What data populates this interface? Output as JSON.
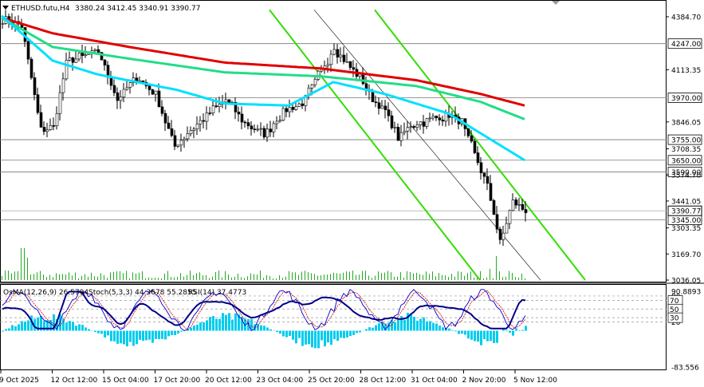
{
  "header": {
    "symbol": "ETHUSD.futu,H4",
    "ohlc": "3380.24 3412.45 3340.91 3390.77"
  },
  "indicator_header": {
    "osma": "OsMA(12,26,9) 26.5794",
    "stoch": "Stoch(5,3,3) 44.3678 55.2855",
    "rsi": "RSI(14) 37.4773"
  },
  "price_axis": {
    "ticks": [
      "4384.70",
      "4113.35",
      "3846.05",
      "3708.35",
      "3574.70",
      "3441.05",
      "3303.35",
      "3169.70",
      "3036.05"
    ],
    "levels": [
      {
        "value": "4247.00",
        "price": 4247
      },
      {
        "value": "3970.00",
        "price": 3970
      },
      {
        "value": "3755.00",
        "price": 3755
      },
      {
        "value": "3650.00",
        "price": 3650
      },
      {
        "value": "3590.00",
        "price": 3590
      },
      {
        "value": "3345.00",
        "price": 3345
      }
    ],
    "current": "3390.77"
  },
  "indicator_axis": {
    "ticks": [
      "90.8893",
      "80",
      "70",
      "50",
      "30",
      "20",
      "-83.556"
    ],
    "boxes": [
      "70",
      "50",
      "30"
    ]
  },
  "time_axis": [
    "9 Oct 2025",
    "12 Oct 12:00",
    "15 Oct 04:00",
    "17 Oct 20:00",
    "20 Oct 12:00",
    "23 Oct 04:00",
    "25 Oct 20:00",
    "28 Oct 12:00",
    "31 Oct 04:00",
    "2 Nov 20:00",
    "5 Nov 12:00"
  ],
  "colors": {
    "candle": "#000000",
    "ma_slow": "#e00000",
    "ma_mid": "#22dd88",
    "ma_fast": "#00e0ff",
    "channel": "#33dd00",
    "volume": "#22aa22",
    "osma": "#00ccee",
    "stoch_main": "#0000cc",
    "stoch_signal": "#cc0000",
    "rsi": "#000088"
  },
  "chart_data": {
    "type": "candlestick",
    "title": "ETHUSD.futu,H4",
    "ylim": [
      3036.05,
      4420
    ],
    "x_range": [
      "9 Oct 2025",
      "6 Nov 2025"
    ],
    "close_anchors": [
      {
        "bar": 0,
        "close": 4380
      },
      {
        "bar": 6,
        "close": 4340
      },
      {
        "bar": 12,
        "close": 3800
      },
      {
        "bar": 16,
        "close": 3820
      },
      {
        "bar": 20,
        "close": 4150
      },
      {
        "bar": 30,
        "close": 4210
      },
      {
        "bar": 36,
        "close": 3960
      },
      {
        "bar": 42,
        "close": 4080
      },
      {
        "bar": 48,
        "close": 3980
      },
      {
        "bar": 54,
        "close": 3720
      },
      {
        "bar": 58,
        "close": 3790
      },
      {
        "bar": 64,
        "close": 3880
      },
      {
        "bar": 70,
        "close": 3960
      },
      {
        "bar": 76,
        "close": 3840
      },
      {
        "bar": 82,
        "close": 3780
      },
      {
        "bar": 88,
        "close": 3900
      },
      {
        "bar": 94,
        "close": 3940
      },
      {
        "bar": 100,
        "close": 4110
      },
      {
        "bar": 104,
        "close": 4230
      },
      {
        "bar": 108,
        "close": 4140
      },
      {
        "bar": 112,
        "close": 4080
      },
      {
        "bar": 116,
        "close": 3960
      },
      {
        "bar": 120,
        "close": 3900
      },
      {
        "bar": 124,
        "close": 3760
      },
      {
        "bar": 128,
        "close": 3830
      },
      {
        "bar": 134,
        "close": 3860
      },
      {
        "bar": 140,
        "close": 3880
      },
      {
        "bar": 144,
        "close": 3840
      },
      {
        "bar": 148,
        "close": 3680
      },
      {
        "bar": 152,
        "close": 3520
      },
      {
        "bar": 154,
        "close": 3380
      },
      {
        "bar": 156,
        "close": 3220
      },
      {
        "bar": 158,
        "close": 3330
      },
      {
        "bar": 160,
        "close": 3440
      },
      {
        "bar": 162,
        "close": 3410
      },
      {
        "bar": 164,
        "close": 3390
      }
    ],
    "moving_averages": [
      {
        "name": "slow",
        "anchors": [
          {
            "bar": 0,
            "v": 4380
          },
          {
            "bar": 16,
            "v": 4300
          },
          {
            "bar": 40,
            "v": 4230
          },
          {
            "bar": 70,
            "v": 4150
          },
          {
            "bar": 100,
            "v": 4120
          },
          {
            "bar": 130,
            "v": 4060
          },
          {
            "bar": 150,
            "v": 3990
          },
          {
            "bar": 164,
            "v": 3930
          }
        ]
      },
      {
        "name": "mid",
        "anchors": [
          {
            "bar": 0,
            "v": 4380
          },
          {
            "bar": 16,
            "v": 4230
          },
          {
            "bar": 40,
            "v": 4170
          },
          {
            "bar": 70,
            "v": 4100
          },
          {
            "bar": 100,
            "v": 4080
          },
          {
            "bar": 130,
            "v": 4030
          },
          {
            "bar": 150,
            "v": 3950
          },
          {
            "bar": 164,
            "v": 3860
          }
        ]
      },
      {
        "name": "fast",
        "anchors": [
          {
            "bar": 0,
            "v": 4390
          },
          {
            "bar": 16,
            "v": 4160
          },
          {
            "bar": 30,
            "v": 4090
          },
          {
            "bar": 55,
            "v": 4010
          },
          {
            "bar": 70,
            "v": 3940
          },
          {
            "bar": 90,
            "v": 3930
          },
          {
            "bar": 104,
            "v": 4050
          },
          {
            "bar": 120,
            "v": 3990
          },
          {
            "bar": 140,
            "v": 3890
          },
          {
            "bar": 150,
            "v": 3790
          },
          {
            "bar": 164,
            "v": 3650
          }
        ]
      }
    ],
    "channel_lines": [
      {
        "from": {
          "bar": 84,
          "v": 4420
        },
        "to": {
          "bar": 150,
          "v": 3036
        }
      },
      {
        "from": {
          "bar": 117,
          "v": 4420
        },
        "to": {
          "bar": 183,
          "v": 3036
        }
      },
      {
        "from": {
          "bar": 98,
          "v": 4420
        },
        "to": {
          "bar": 169,
          "v": 3036
        },
        "style": "thin"
      }
    ],
    "indicator_range": [
      -83.556,
      90.8893
    ]
  }
}
